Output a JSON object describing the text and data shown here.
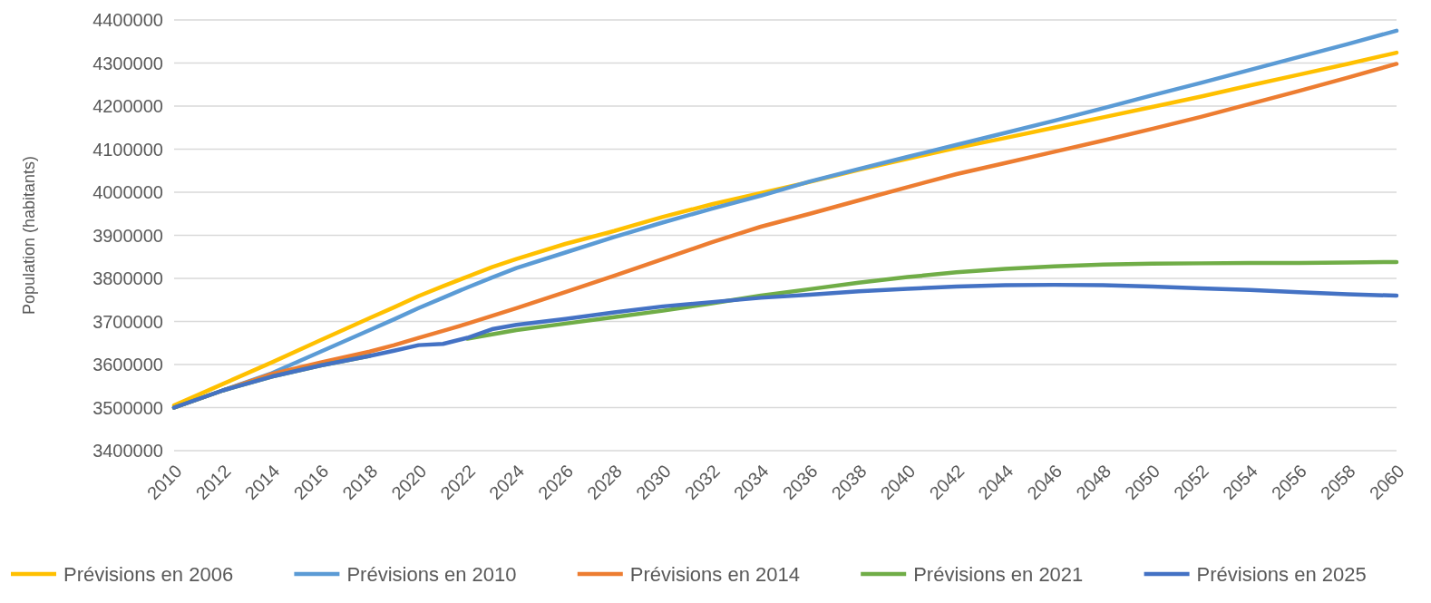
{
  "chart_data": {
    "type": "line",
    "ylabel": "Population (habitants)",
    "x": [
      2010,
      2012,
      2014,
      2016,
      2018,
      2019,
      2020,
      2021,
      2022,
      2023,
      2024,
      2026,
      2028,
      2030,
      2032,
      2034,
      2036,
      2038,
      2040,
      2042,
      2044,
      2046,
      2048,
      2050,
      2052,
      2054,
      2056,
      2058,
      2060
    ],
    "series": [
      {
        "name": "Prévisions en 2006",
        "color": "#ffc000",
        "values": [
          3505000,
          3555000,
          3605000,
          3657000,
          3708000,
          3733000,
          3759000,
          3782000,
          3804000,
          3826000,
          3845000,
          3880000,
          3910000,
          3943000,
          3972000,
          3998000,
          4024000,
          4052000,
          4078000,
          4103000,
          4126000,
          4150000,
          4174000,
          4198000,
          4222000,
          4248000,
          4273000,
          4298000,
          4324000
        ]
      },
      {
        "name": "Prévisions en 2010",
        "color": "#5b9bd5",
        "values": [
          3500000,
          3540000,
          3580000,
          3630000,
          3680000,
          3705000,
          3731000,
          3755000,
          3779000,
          3802000,
          3824000,
          3860000,
          3896000,
          3930000,
          3962000,
          3992000,
          4025000,
          4054000,
          4082000,
          4110000,
          4138000,
          4166000,
          4195000,
          4225000,
          4254000,
          4284000,
          4314000,
          4344000,
          4375000
        ]
      },
      {
        "name": "Prévisions en 2014",
        "color": "#ed7d31",
        "values": [
          3500000,
          3540000,
          3578000,
          3605000,
          3630000,
          3645000,
          3662000,
          3678000,
          3695000,
          3713000,
          3731000,
          3768000,
          3806000,
          3845000,
          3884000,
          3920000,
          3950000,
          3981000,
          4012000,
          4042000,
          4068000,
          4094000,
          4120000,
          4147000,
          4175000,
          4205000,
          4235000,
          4266000,
          4298000
        ]
      },
      {
        "name": "Prévisions en 2021",
        "color": "#70ad47",
        "values": [
          3500000,
          3540000,
          3572000,
          3598000,
          3620000,
          null,
          null,
          null,
          3660000,
          3670000,
          3680000,
          3695000,
          3710000,
          3725000,
          3742000,
          3760000,
          3775000,
          3790000,
          3803000,
          3814000,
          3822000,
          3828000,
          3832000,
          3834000,
          3835000,
          3836000,
          3836000,
          3837000,
          3838000
        ]
      },
      {
        "name": "Prévisions en 2025",
        "color": "#4472c4",
        "values": [
          3500000,
          3540000,
          3572000,
          3598000,
          3620000,
          3632000,
          3645000,
          3648000,
          3662000,
          3682000,
          3692000,
          3706000,
          3721000,
          3735000,
          3745000,
          3755000,
          3762000,
          3770000,
          3776000,
          3781000,
          3784000,
          3785000,
          3784000,
          3781000,
          3777000,
          3773000,
          3768000,
          3763000,
          3760000
        ]
      }
    ],
    "xlim": [
      2010,
      2060
    ],
    "xticks": [
      2010,
      2012,
      2014,
      2016,
      2018,
      2020,
      2022,
      2024,
      2026,
      2028,
      2030,
      2032,
      2034,
      2036,
      2038,
      2040,
      2042,
      2044,
      2046,
      2048,
      2050,
      2052,
      2054,
      2056,
      2058,
      2060
    ],
    "ylim": [
      3400000,
      4400000
    ],
    "yticks": [
      3400000,
      3500000,
      3600000,
      3700000,
      3800000,
      3900000,
      4000000,
      4100000,
      4200000,
      4300000,
      4400000
    ],
    "grid": "y",
    "legend": "bottom",
    "marker": "none",
    "line_style": "solid"
  }
}
